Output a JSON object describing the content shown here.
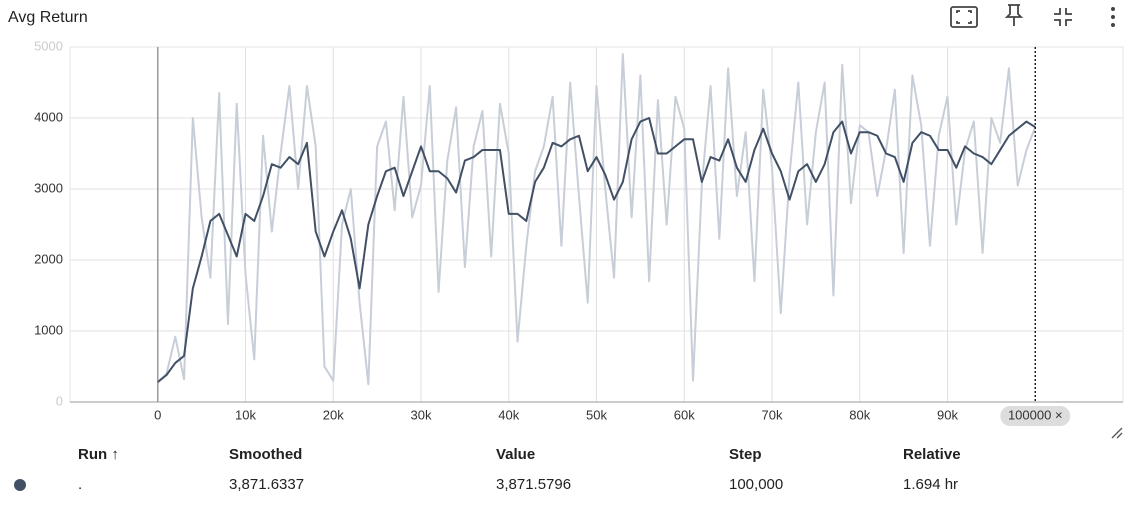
{
  "header": {
    "title": "Avg Return"
  },
  "chart_data": {
    "type": "line",
    "x": [
      0,
      1000,
      2000,
      3000,
      4000,
      5000,
      6000,
      7000,
      8000,
      9000,
      10000,
      11000,
      12000,
      13000,
      14000,
      15000,
      16000,
      17000,
      18000,
      19000,
      20000,
      21000,
      22000,
      23000,
      24000,
      25000,
      26000,
      27000,
      28000,
      29000,
      30000,
      31000,
      32000,
      33000,
      34000,
      35000,
      36000,
      37000,
      38000,
      39000,
      40000,
      41000,
      42000,
      43000,
      44000,
      45000,
      46000,
      47000,
      48000,
      49000,
      50000,
      51000,
      52000,
      53000,
      54000,
      55000,
      56000,
      57000,
      58000,
      59000,
      60000,
      61000,
      62000,
      63000,
      64000,
      65000,
      66000,
      67000,
      68000,
      69000,
      70000,
      71000,
      72000,
      73000,
      74000,
      75000,
      76000,
      77000,
      78000,
      79000,
      80000,
      81000,
      82000,
      83000,
      84000,
      85000,
      86000,
      87000,
      88000,
      89000,
      90000,
      91000,
      92000,
      93000,
      94000,
      95000,
      96000,
      97000,
      98000,
      99000,
      100000
    ],
    "series": [
      {
        "color": "#c8ced8",
        "values": [
          280,
          400,
          920,
          320,
          4000,
          2600,
          1750,
          4350,
          1100,
          4200,
          1800,
          600,
          3750,
          2400,
          3500,
          4450,
          3000,
          4450,
          3600,
          500,
          300,
          2500,
          3000,
          1400,
          250,
          3600,
          3950,
          2700,
          4300,
          2600,
          3050,
          4450,
          1550,
          3400,
          4150,
          1900,
          3600,
          4100,
          2050,
          4200,
          3500,
          850,
          2200,
          3250,
          3600,
          4300,
          2200,
          4500,
          2900,
          1400,
          4450,
          3000,
          1750,
          4900,
          2600,
          4600,
          1700,
          4250,
          2500,
          4300,
          3850,
          300,
          3050,
          4450,
          2300,
          4700,
          2900,
          3800,
          1700,
          4400,
          3300,
          1250,
          3200,
          4500,
          2500,
          3800,
          4500,
          1500,
          4750,
          2800,
          3900,
          3800,
          2900,
          3550,
          4400,
          2100,
          4600,
          3900,
          2200,
          3750,
          4300,
          2500,
          3550,
          3950,
          2100,
          4000,
          3650,
          4700,
          3050,
          3550,
          3871.58
        ]
      },
      {
        "color": "#425066",
        "values": [
          280,
          380,
          550,
          650,
          1600,
          2050,
          2550,
          2650,
          2350,
          2050,
          2650,
          2550,
          2900,
          3350,
          3300,
          3450,
          3350,
          3650,
          2400,
          2050,
          2400,
          2700,
          2300,
          1600,
          2500,
          2900,
          3250,
          3300,
          2900,
          3250,
          3600,
          3250,
          3250,
          3150,
          2950,
          3400,
          3450,
          3550,
          3550,
          3550,
          2650,
          2650,
          2550,
          3100,
          3300,
          3650,
          3600,
          3700,
          3750,
          3250,
          3450,
          3200,
          2850,
          3100,
          3700,
          3950,
          4000,
          3500,
          3500,
          3600,
          3700,
          3700,
          3100,
          3450,
          3400,
          3700,
          3300,
          3100,
          3550,
          3850,
          3500,
          3250,
          2850,
          3250,
          3350,
          3100,
          3350,
          3800,
          3950,
          3500,
          3800,
          3800,
          3750,
          3500,
          3450,
          3100,
          3650,
          3800,
          3750,
          3550,
          3550,
          3300,
          3600,
          3500,
          3450,
          3350,
          3550,
          3750,
          3850,
          3950,
          3871.63
        ]
      }
    ],
    "xlim": [
      -10000,
      110000
    ],
    "xticks": [
      0,
      {
        "value": 10000,
        "label": "10k"
      },
      {
        "value": 20000,
        "label": "20k"
      },
      {
        "value": 30000,
        "label": "30k"
      },
      {
        "value": 40000,
        "label": "40k"
      },
      {
        "value": 50000,
        "label": "50k"
      },
      {
        "value": 60000,
        "label": "60k"
      },
      {
        "value": 70000,
        "label": "70k"
      },
      {
        "value": 80000,
        "label": "80k"
      },
      {
        "value": 90000,
        "label": "90k"
      }
    ],
    "ylim": [
      0,
      5000
    ],
    "yticks": [
      0,
      1000,
      2000,
      3000,
      4000,
      5000
    ],
    "grid": true,
    "hover": {
      "value": 100000,
      "label": "100000 ×"
    }
  },
  "table": {
    "headers": [
      "Run ↑",
      "Smoothed",
      "Value",
      "Step",
      "Relative"
    ],
    "rows": [
      [
        ".",
        "3,871.6337",
        "3,871.5796",
        "100,000",
        "1.694 hr"
      ]
    ]
  }
}
